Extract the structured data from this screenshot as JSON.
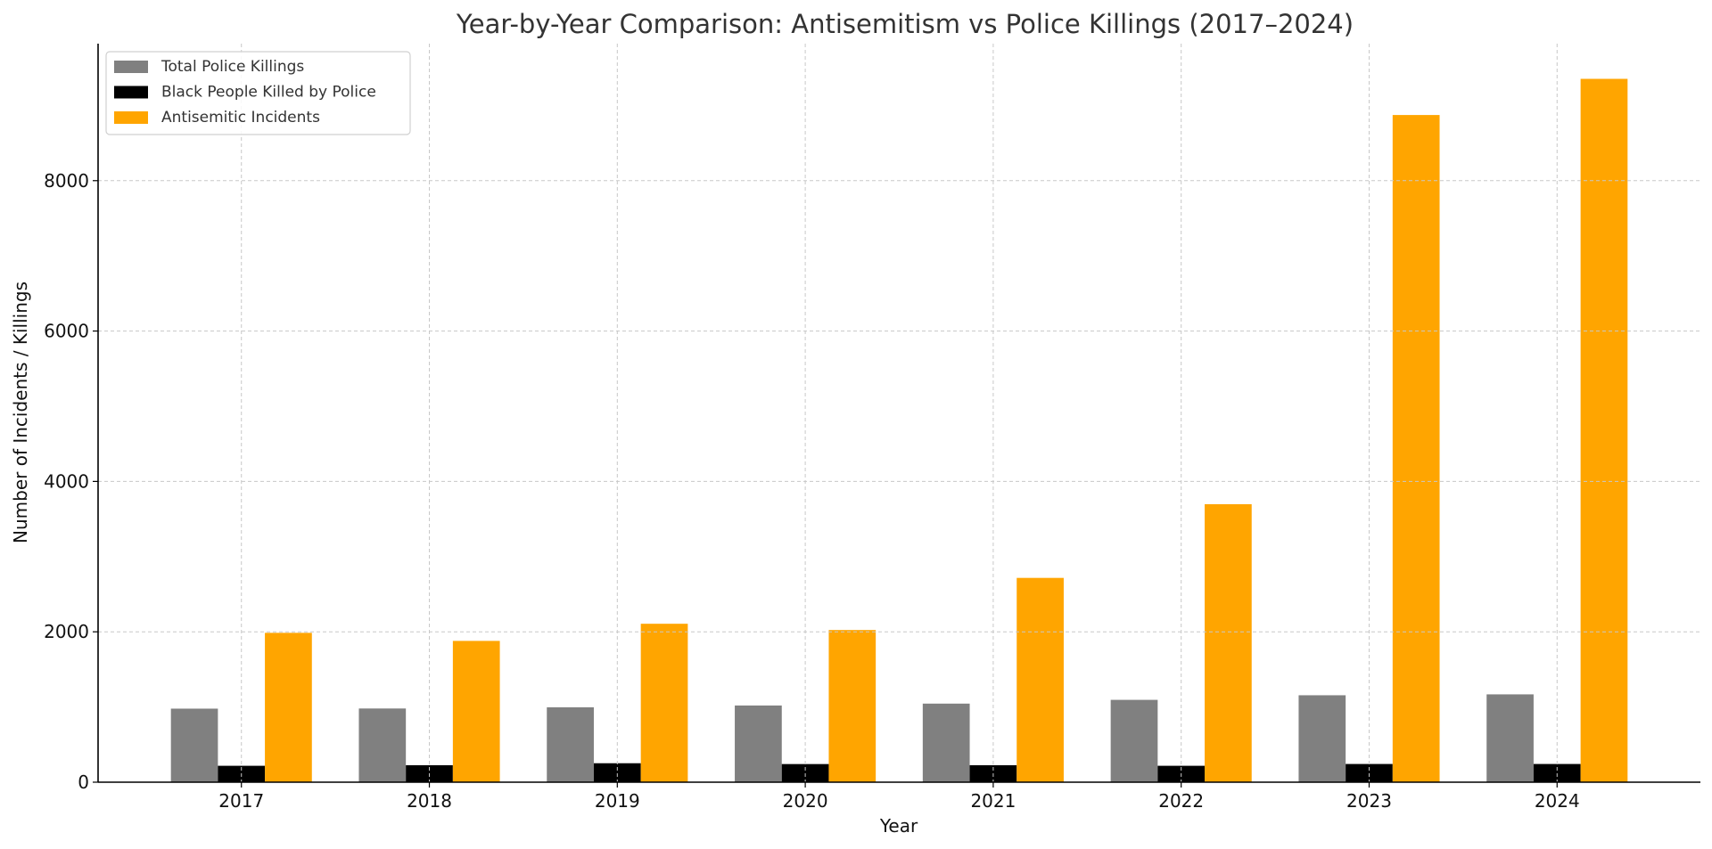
{
  "chart_data": {
    "type": "bar",
    "title": "Year-by-Year Comparison: Antisemitism vs Police Killings (2017–2024)",
    "xlabel": "Year",
    "ylabel": "Number of Incidents / Killings",
    "categories": [
      "2017",
      "2018",
      "2019",
      "2020",
      "2021",
      "2022",
      "2023",
      "2024"
    ],
    "series": [
      {
        "name": "Total Police Killings",
        "color": "#808080",
        "values": [
          978,
          980,
          996,
          1020,
          1045,
          1095,
          1156,
          1168
        ]
      },
      {
        "name": "Black People Killed by Police",
        "color": "#000000",
        "values": [
          218,
          226,
          252,
          241,
          226,
          218,
          242,
          242
        ]
      },
      {
        "name": "Antisemitic Incidents",
        "color": "#FFA500",
        "values": [
          1986,
          1879,
          2107,
          2024,
          2717,
          3697,
          8873,
          9354
        ]
      }
    ],
    "ylim": [
      0,
      9822
    ],
    "yticks": [
      "0",
      "2000",
      "4000",
      "6000",
      "8000"
    ],
    "ytick_values": [
      0,
      2000,
      4000,
      6000,
      8000
    ],
    "grid": true,
    "legend_position": "top-left"
  }
}
